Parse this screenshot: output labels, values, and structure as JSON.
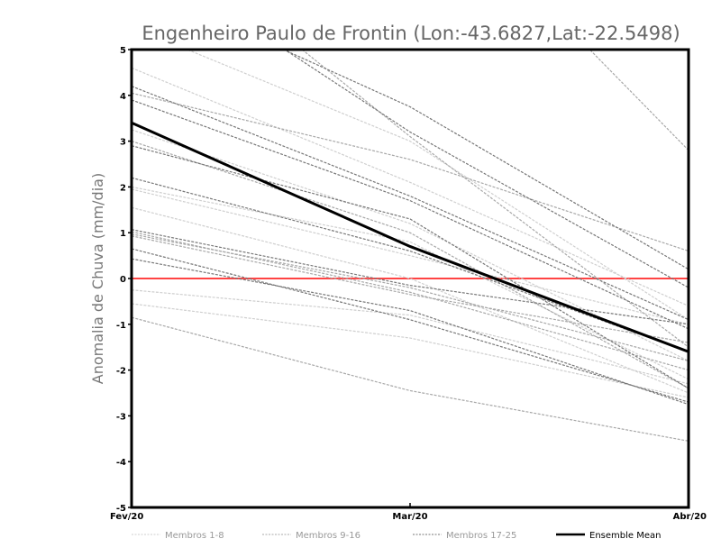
{
  "chart_data": {
    "type": "line",
    "title": "Engenheiro Paulo de Frontin (Lon:-43.6827,Lat:-22.5498)",
    "xlabel": "",
    "ylabel": "Anomalia de Chuva (mm/dia)",
    "categories": [
      "Fev/20",
      "Mar/20",
      "Abr/20"
    ],
    "ylim": [
      -5,
      5
    ],
    "yticks": [
      "-5",
      "-4",
      "-3",
      "-2",
      "-1",
      "0",
      "1",
      "2",
      "3",
      "4",
      "5"
    ],
    "reference_line": {
      "value": 0,
      "color": "#ff4444"
    },
    "groups": [
      {
        "name": "Membros 1-8",
        "color": "#cfcfcf",
        "members": [
          [
            4.6,
            2.1,
            -0.6
          ],
          [
            3.25,
            1.2,
            -1.8
          ],
          [
            1.55,
            0.0,
            -2.5
          ],
          [
            -0.25,
            -0.8,
            -2.3
          ],
          [
            -0.55,
            -1.3,
            -2.6
          ],
          [
            1.95,
            0.5,
            -1.0
          ],
          [
            2.0,
            0.8,
            -2.2
          ],
          [
            5.5,
            3.0,
            -0.9
          ]
        ]
      },
      {
        "name": "Membros 9-16",
        "color": "#a8a8a8",
        "members": [
          [
            8.0,
            3.1,
            -1.5
          ],
          [
            4.05,
            2.6,
            0.6
          ],
          [
            0.97,
            -0.2,
            -1.8
          ],
          [
            1.02,
            -0.3,
            -2.0
          ],
          [
            -0.85,
            -2.45,
            -3.55
          ],
          [
            3.0,
            1.0,
            -2.4
          ],
          [
            10.0,
            9.0,
            2.8
          ],
          [
            0.93,
            -0.35,
            -1.4
          ]
        ]
      },
      {
        "name": "Membros 17-25",
        "color": "#777777",
        "members": [
          [
            6.5,
            3.75,
            0.2
          ],
          [
            7.2,
            3.2,
            -0.2
          ],
          [
            4.2,
            1.8,
            -0.9
          ],
          [
            3.9,
            1.7,
            -1.1
          ],
          [
            2.9,
            1.3,
            -2.4
          ],
          [
            2.2,
            0.6,
            -1.6
          ],
          [
            1.07,
            -0.15,
            -1.0
          ],
          [
            0.65,
            -0.9,
            -2.7
          ],
          [
            0.43,
            -0.7,
            -2.75
          ]
        ]
      }
    ],
    "ensemble_mean": {
      "name": "Ensemble Mean",
      "color": "#000000",
      "values": [
        3.4,
        0.7,
        -1.6
      ]
    },
    "legend_position": "bottom"
  }
}
